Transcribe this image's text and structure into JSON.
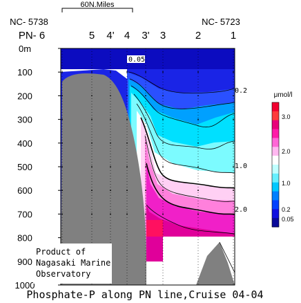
{
  "chart_data": {
    "type": "heatmap",
    "title": "Phosphate-P along PN line,Cruise 04-04",
    "scale_label": "60N.Miles",
    "left_station_id": "NC- 5738",
    "right_station_id": "NC- 5723",
    "stations": [
      {
        "label": "PN- 6"
      },
      {
        "label": "5"
      },
      {
        "label": "4'"
      },
      {
        "label": "4"
      },
      {
        "label": "3'"
      },
      {
        "label": "3"
      },
      {
        "label": "2"
      },
      {
        "label": "1"
      }
    ],
    "y_ticks": [
      {
        "value": 0,
        "label": "0m"
      },
      {
        "value": 100,
        "label": "100"
      },
      {
        "value": 200,
        "label": "200"
      },
      {
        "value": 300,
        "label": "300"
      },
      {
        "value": 400,
        "label": "400"
      },
      {
        "value": 500,
        "label": "500"
      },
      {
        "value": 600,
        "label": "600"
      },
      {
        "value": 700,
        "label": "700"
      },
      {
        "value": 800,
        "label": "800"
      },
      {
        "value": 900,
        "label": "900"
      },
      {
        "value": 1000,
        "label": "1000"
      }
    ],
    "ylim": [
      0,
      1000
    ],
    "contour_labels": [
      {
        "text": "0.05",
        "depth": 50
      },
      {
        "text": "0.2",
        "depth": 185
      },
      {
        "text": "1.0",
        "depth": 510
      },
      {
        "text": "2.0",
        "depth": 700
      }
    ],
    "colorbar": {
      "unit": "μmol/l",
      "ticks": [
        "3.0",
        "2.0",
        "1.0",
        "0.2",
        "0.05"
      ],
      "colors": [
        "#f20030",
        "#ff3c3c",
        "#e8007a",
        "#ff1aa8",
        "#ff66d6",
        "#ffb8f0",
        "#ffffff",
        "#c0ffff",
        "#66f0ff",
        "#00c8ff",
        "#0080ff",
        "#0040ff",
        "#1010e0",
        "#0a0a9a"
      ]
    },
    "footnote": [
      "Product of",
      "Nagasaki Marine",
      "Observatory"
    ]
  }
}
